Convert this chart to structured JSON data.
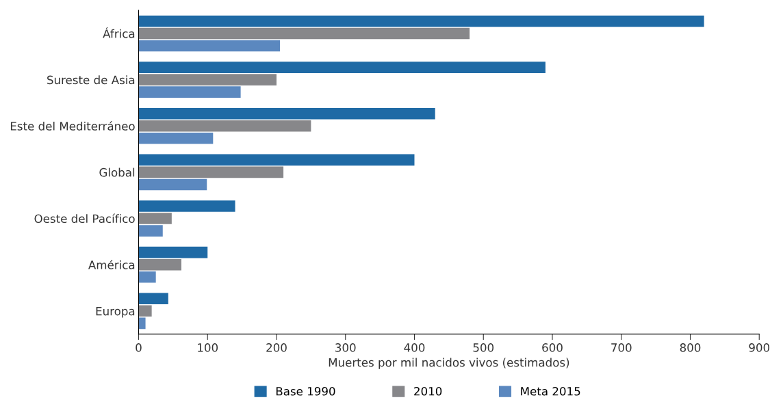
{
  "chart_data": {
    "type": "bar",
    "orientation": "horizontal",
    "xlabel": "Muertes por mil nacidos vivos (estimados)",
    "categories": [
      "África",
      "Sureste de Asia",
      "Este del Mediterráneo",
      "Global",
      "Oeste del Pacífico",
      "América",
      "Europa"
    ],
    "series": [
      {
        "name": "Base 1990",
        "color": "#1f6aa5",
        "values": [
          820,
          590,
          430,
          400,
          140,
          100,
          43
        ]
      },
      {
        "name": "2010",
        "color": "#87878a",
        "values": [
          480,
          200,
          250,
          210,
          48,
          62,
          19
        ]
      },
      {
        "name": "Meta 2015",
        "color": "#5b88bf",
        "values": [
          205,
          148,
          108,
          99,
          35,
          25,
          10
        ]
      }
    ],
    "xlim": [
      0,
      900
    ],
    "xticks": [
      0,
      100,
      200,
      300,
      400,
      500,
      600,
      700,
      800,
      900
    ],
    "grid": false,
    "legend": "bottom"
  }
}
